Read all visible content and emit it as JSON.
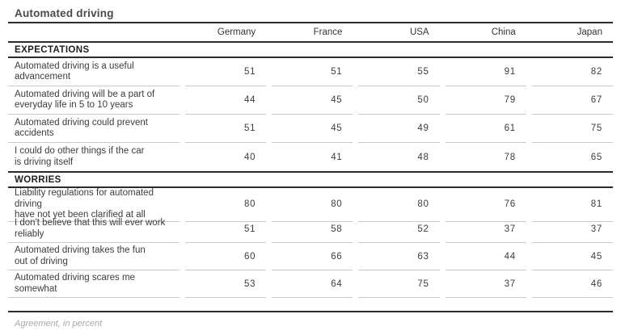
{
  "chart_data": {
    "type": "table",
    "title": "Automated driving",
    "columns": [
      "Germany",
      "France",
      "USA",
      "China",
      "Japan"
    ],
    "sections": [
      {
        "label": "EXPECTATIONS",
        "rows": [
          {
            "label": "Automated driving is a useful\nadvancement",
            "values": [
              51,
              51,
              55,
              91,
              82
            ]
          },
          {
            "label": "Automated driving will be a part of\neveryday life in 5 to 10 years",
            "values": [
              44,
              45,
              50,
              79,
              67
            ]
          },
          {
            "label": "Automated driving could prevent\naccidents",
            "values": [
              51,
              45,
              49,
              61,
              75
            ]
          },
          {
            "label": "I could do other things if the car\nis driving itself",
            "values": [
              40,
              41,
              48,
              78,
              65
            ]
          }
        ]
      },
      {
        "label": "WORRIES",
        "rows": [
          {
            "label": "Liability regulations for automated driving\nhave not yet been clarified at all",
            "values": [
              80,
              80,
              80,
              76,
              81
            ]
          },
          {
            "label": "I don't believe that this will ever work\nreliably",
            "values": [
              51,
              58,
              52,
              37,
              37
            ]
          },
          {
            "label": "Automated driving takes the fun\nout of driving",
            "values": [
              60,
              66,
              63,
              44,
              45
            ]
          },
          {
            "label": "Automated driving scares me somewhat",
            "values": [
              53,
              64,
              75,
              37,
              46
            ]
          }
        ]
      }
    ],
    "note": "Agreement, in percent"
  },
  "colors": {
    "title_text": "#4a4a4a",
    "dark_rule": "#2b2b2b",
    "light_rule": "#c9c9c9",
    "body_text": "#3c3c3c",
    "section_text": "#1e1e1e",
    "note_text": "#a8a8a8",
    "background": "#ffffff"
  }
}
